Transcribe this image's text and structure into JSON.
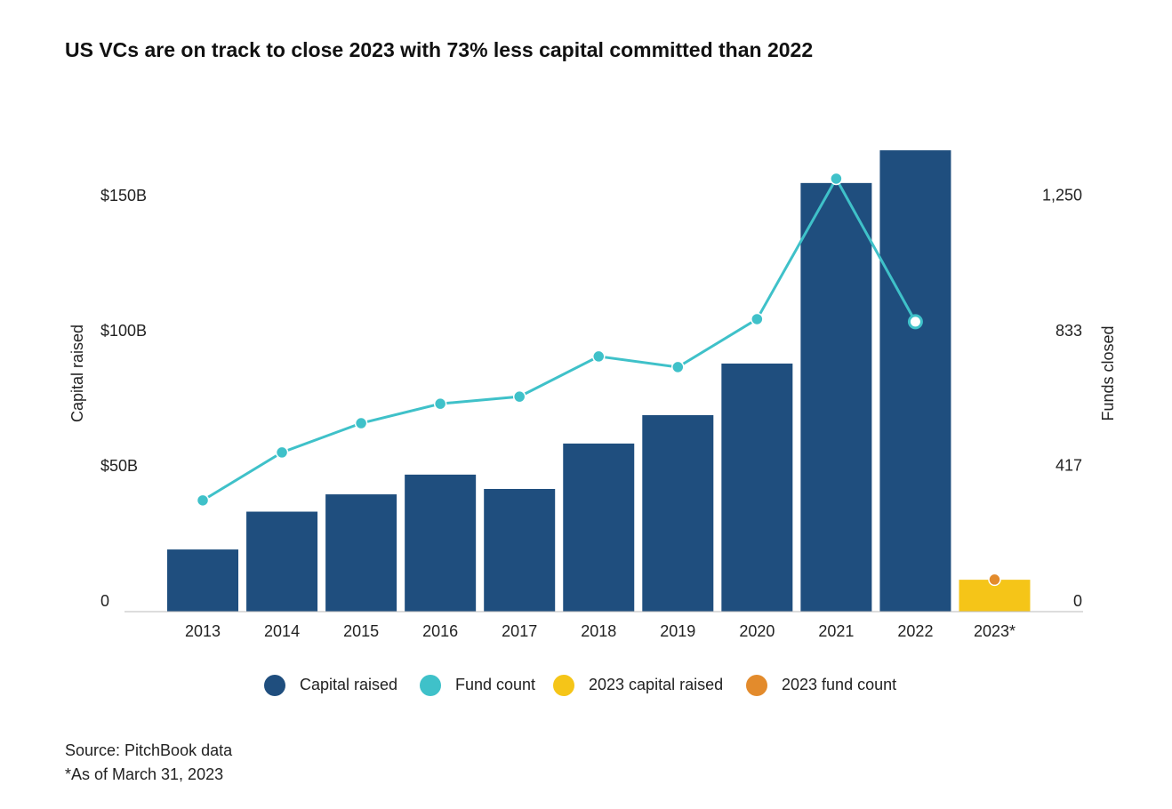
{
  "chart_data": {
    "type": "bar",
    "title": "US VCs are on track to close 2023 with 73% less capital committed than 2022",
    "categories": [
      "2013",
      "2014",
      "2015",
      "2016",
      "2017",
      "2018",
      "2019",
      "2020",
      "2021",
      "2022",
      "2023*"
    ],
    "series": [
      {
        "name": "Capital raised",
        "type": "bar",
        "color": "#1f4e7e",
        "values": [
          23,
          37,
          43.4,
          50.7,
          45.4,
          62.2,
          72.7,
          91.8,
          158.6,
          170.7,
          null
        ]
      },
      {
        "name": "Fund count",
        "type": "line",
        "axis": "y2",
        "color": "#3fc1c9",
        "values": [
          343,
          491,
          581,
          641,
          663,
          787,
          754,
          902,
          1335,
          894,
          null
        ]
      },
      {
        "name": "2023 capital raised",
        "type": "bar",
        "color": "#f5c518",
        "values": [
          null,
          null,
          null,
          null,
          null,
          null,
          null,
          null,
          null,
          null,
          11.8
        ]
      },
      {
        "name": "2023 fund count",
        "type": "scatter",
        "axis": "y2",
        "color": "#e38b2c",
        "values": [
          null,
          null,
          null,
          null,
          null,
          null,
          null,
          null,
          null,
          null,
          99
        ]
      }
    ],
    "y_label": "Capital raised",
    "y2_label": "Funds closed",
    "ylim": [
      0,
      175
    ],
    "yticks": [
      0,
      {
        "value": 50,
        "label": "$50B"
      },
      {
        "value": 100,
        "label": "$100B"
      },
      {
        "value": 150,
        "label": "$150B"
      }
    ],
    "y2lim": [
      0,
      1458.3
    ],
    "y2ticks": [
      0,
      417,
      833,
      {
        "value": 1250,
        "label": "1,250"
      }
    ],
    "grid": false,
    "legend": "bottom",
    "source": "Source: PitchBook data",
    "note": "*As of March 31, 2023"
  }
}
